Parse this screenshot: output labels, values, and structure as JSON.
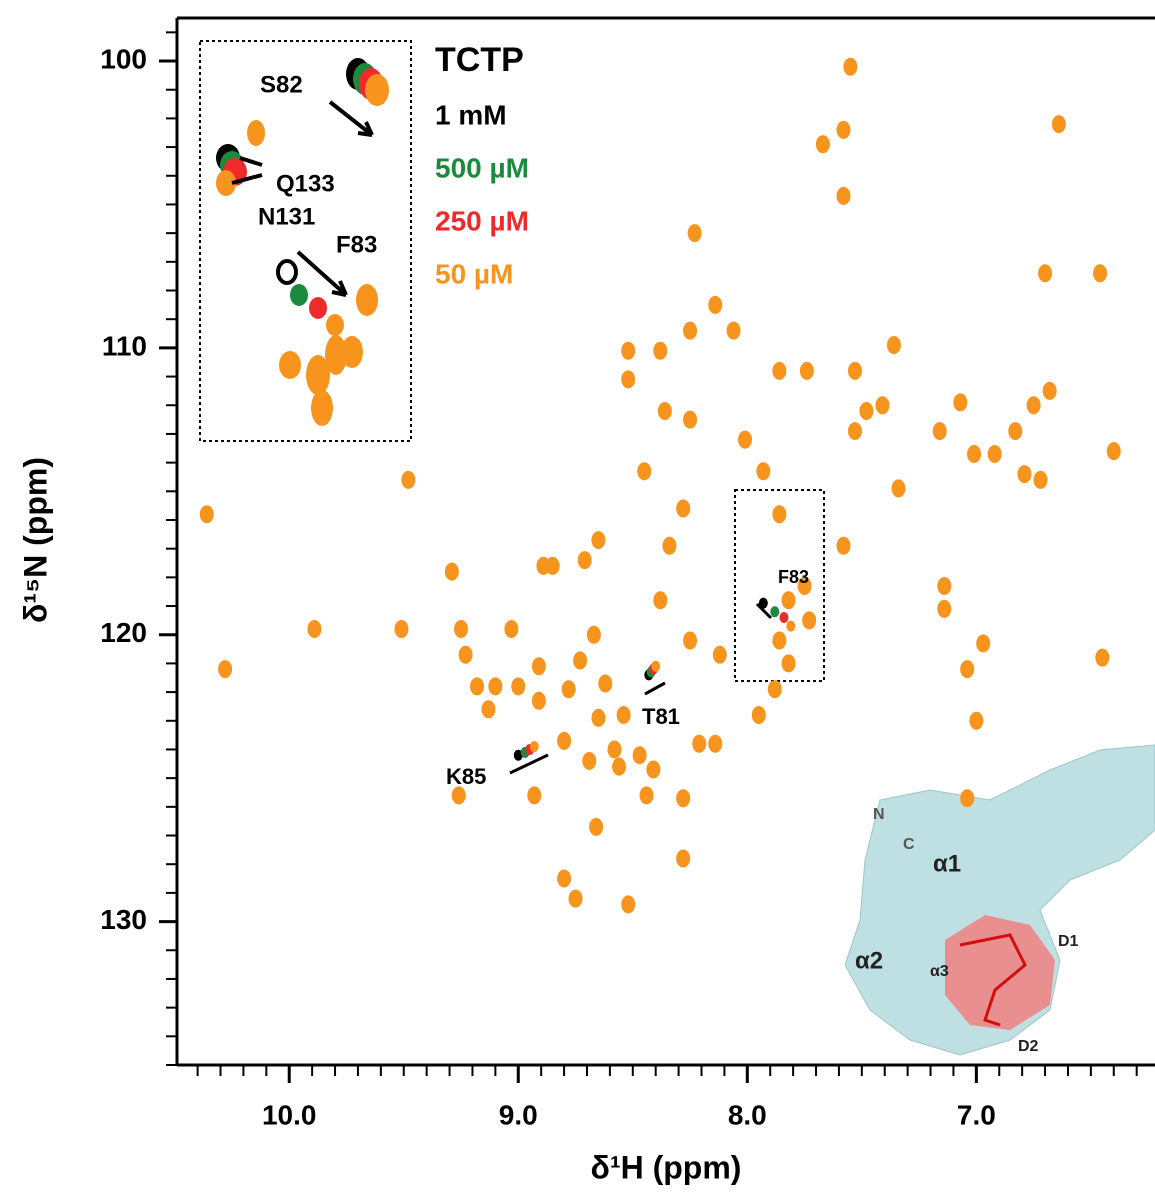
{
  "chart_data": {
    "type": "scatter",
    "x_label": "δ¹H (ppm)",
    "y_label": "δ¹⁵N (ppm)",
    "legend_title": "TCTP",
    "xlim": [
      10.49,
      6.22
    ],
    "ylim": [
      98.5,
      135
    ],
    "xticks": [
      {
        "value": 10,
        "label": "10.0"
      },
      {
        "value": 9,
        "label": "9.0"
      },
      {
        "value": 8,
        "label": "8.0"
      },
      {
        "value": 7,
        "label": "7.0"
      }
    ],
    "yticks": [
      100,
      110,
      120,
      130
    ],
    "xminorticks": [
      10.4,
      10.3,
      10.2,
      10.1,
      9.9,
      9.8,
      9.7,
      9.6,
      9.5,
      9.4,
      9.3,
      9.2,
      9.1,
      8.9,
      8.8,
      8.7,
      8.6,
      8.5,
      8.4,
      8.3,
      8.2,
      8.1,
      7.9,
      7.8,
      7.7,
      7.6,
      7.5,
      7.4,
      7.3,
      7.2,
      7.1,
      6.9,
      6.8,
      6.7,
      6.6,
      6.5,
      6.4,
      6.3
    ],
    "yminorticks": [
      99,
      101,
      102,
      103,
      104,
      105,
      106,
      107,
      108,
      109,
      111,
      112,
      113,
      114,
      115,
      116,
      117,
      118,
      119,
      121,
      122,
      123,
      124,
      125,
      126,
      127,
      128,
      129,
      131,
      132,
      133,
      134,
      135
    ],
    "series": [
      {
        "name": "1 mM",
        "color": "#000000",
        "x": [
          7.93,
          9.0,
          8.43
        ],
        "y": [
          118.9,
          124.2,
          121.4
        ]
      },
      {
        "name": "500 µM",
        "color": "#1a8a3c",
        "x": [
          7.88,
          8.97,
          8.42
        ],
        "y": [
          119.2,
          124.1,
          121.3
        ]
      },
      {
        "name": "250 µM",
        "color": "#ee2a2a",
        "x": [
          7.84,
          8.95,
          8.41
        ],
        "y": [
          119.4,
          124.0,
          121.2
        ]
      },
      {
        "name": "50 µM",
        "color": "#f7941d",
        "x": [
          7.81,
          8.93,
          8.4,
          10.36,
          10.28,
          9.89,
          9.48,
          9.51,
          9.29,
          9.25,
          9.23,
          9.18,
          9.1,
          9.13,
          9.03,
          9.0,
          8.91,
          8.91,
          8.89,
          8.85,
          8.93,
          8.8,
          8.78,
          8.73,
          8.71,
          8.65,
          8.67,
          8.65,
          8.62,
          8.58,
          8.54,
          8.52,
          8.52,
          8.47,
          8.45,
          8.38,
          8.36,
          8.25,
          8.25,
          8.23,
          8.14,
          8.06,
          8.01,
          7.93,
          7.86,
          7.74,
          7.95,
          7.88,
          7.86,
          7.82,
          7.86,
          7.75,
          7.82,
          7.73,
          7.67,
          7.58,
          7.58,
          7.55,
          7.58,
          7.53,
          7.53,
          7.48,
          7.41,
          7.36,
          7.34,
          7.16,
          7.14,
          7.14,
          7.07,
          7.01,
          7.0,
          7.04,
          7.04,
          6.97,
          6.92,
          6.83,
          6.79,
          6.72,
          6.75,
          6.68,
          6.64,
          6.7,
          6.46,
          6.4,
          6.45,
          8.28,
          8.52,
          8.28,
          8.44,
          8.66,
          8.8,
          8.75,
          9.26,
          8.69,
          8.56,
          8.41,
          8.21,
          8.14,
          8.12,
          8.25,
          8.38,
          8.34,
          8.28
        ],
        "y": [
          119.7,
          123.9,
          121.1,
          115.8,
          121.2,
          119.8,
          114.6,
          119.8,
          117.8,
          119.8,
          120.7,
          121.8,
          121.8,
          122.6,
          119.8,
          121.8,
          121.1,
          122.3,
          117.6,
          117.6,
          125.6,
          123.7,
          121.9,
          120.9,
          117.4,
          116.7,
          120.0,
          122.9,
          121.7,
          124.0,
          122.8,
          111.1,
          110.1,
          124.2,
          114.3,
          110.1,
          112.2,
          109.4,
          112.5,
          106.0,
          108.5,
          109.4,
          113.2,
          114.3,
          110.8,
          110.8,
          122.8,
          121.9,
          120.2,
          121.0,
          115.8,
          118.3,
          118.8,
          119.5,
          102.9,
          102.4,
          104.7,
          100.2,
          116.9,
          110.8,
          112.9,
          112.2,
          112.0,
          109.9,
          114.9,
          112.9,
          119.1,
          118.3,
          111.9,
          113.7,
          123.0,
          121.2,
          125.7,
          120.3,
          113.7,
          112.9,
          114.4,
          114.6,
          112.0,
          111.5,
          102.2,
          107.4,
          107.4,
          113.6,
          120.8,
          127.8,
          129.4,
          125.7,
          125.6,
          126.7,
          128.5,
          129.2,
          125.6,
          124.4,
          124.6,
          124.7,
          123.8,
          123.8,
          120.7,
          120.2,
          118.8,
          116.9,
          115.6
        ]
      }
    ],
    "annotations": [
      "F83",
      "T81",
      "K85"
    ],
    "inset_labels": [
      "S82",
      "Q133",
      "N131",
      "F83"
    ],
    "structure_labels": [
      "N",
      "C",
      "α1",
      "α2",
      "α3",
      "D1",
      "D2"
    ]
  }
}
